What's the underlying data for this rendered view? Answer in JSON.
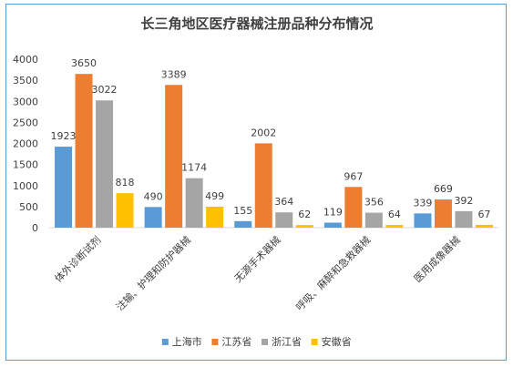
{
  "chart_data": {
    "type": "bar",
    "title": "长三角地区医疗器械注册品种分布情况",
    "categories": [
      "体外诊断试剂",
      "注输、护理和防护器械",
      "无源手术器械",
      "呼吸、麻醉和急救器械",
      "医用成像器械"
    ],
    "series": [
      {
        "name": "上海市",
        "color": "#5b9bd5",
        "values": [
          1923,
          490,
          155,
          119,
          339
        ]
      },
      {
        "name": "江苏省",
        "color": "#ed7d31",
        "values": [
          3650,
          3389,
          2002,
          967,
          669
        ]
      },
      {
        "name": "浙江省",
        "color": "#a5a5a5",
        "values": [
          3022,
          1174,
          364,
          356,
          392
        ]
      },
      {
        "name": "安徽省",
        "color": "#ffc000",
        "values": [
          818,
          499,
          62,
          64,
          67
        ]
      }
    ],
    "yticks": [
      0,
      500,
      1000,
      1500,
      2000,
      2500,
      3000,
      3500,
      4000
    ],
    "ylim": [
      0,
      4000
    ],
    "grid": false,
    "legend": "bottom"
  }
}
